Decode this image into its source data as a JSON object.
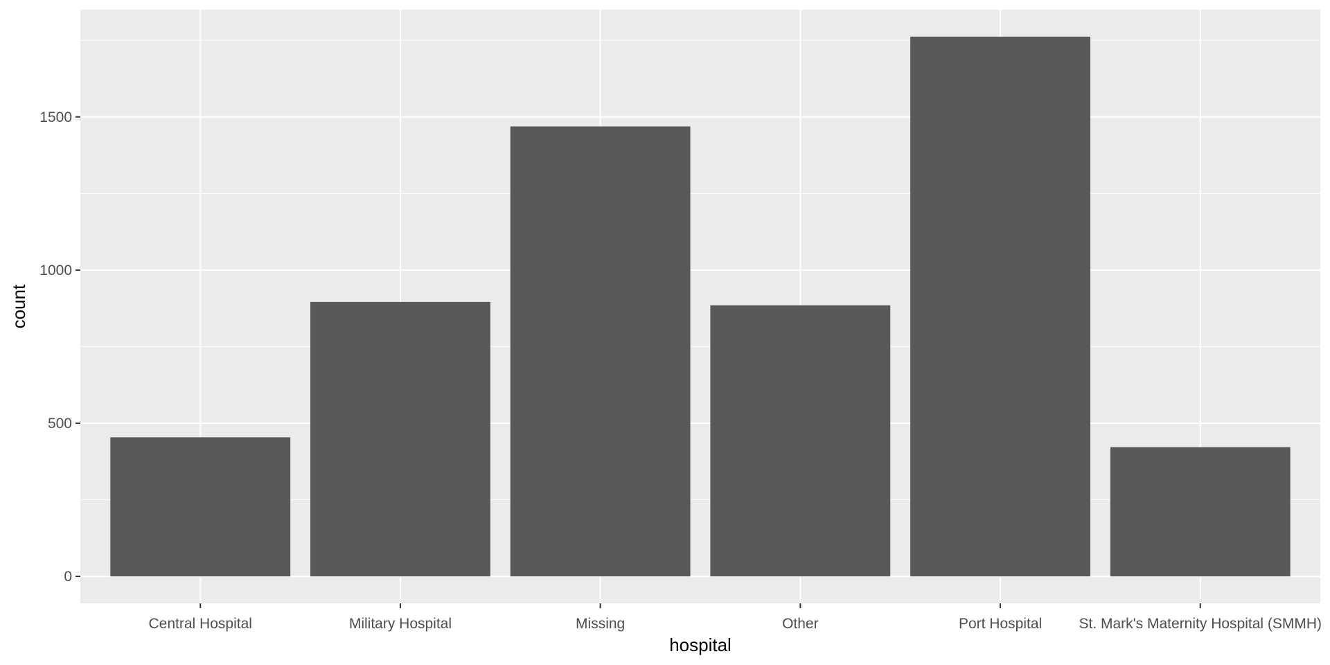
{
  "chart_data": {
    "type": "bar",
    "categories": [
      "Central Hospital",
      "Military Hospital",
      "Missing",
      "Other",
      "Port Hospital",
      "St. Mark's Maternity Hospital (SMMH)"
    ],
    "values": [
      454,
      896,
      1469,
      885,
      1762,
      422
    ],
    "xlabel": "hospital",
    "ylabel": "count",
    "ylim": [
      -88,
      1850
    ],
    "yticks": [
      0,
      500,
      1000,
      1500
    ],
    "ytick_labels": [
      "0",
      "500",
      "1000",
      "1500"
    ],
    "grid": true,
    "legend": "none",
    "colors": {
      "bar": "#595959",
      "panel": "#ebebeb",
      "grid": "#ffffff",
      "tick_text": "#4d4d4d",
      "tick_mark": "#333333",
      "title_text": "#000000"
    }
  }
}
